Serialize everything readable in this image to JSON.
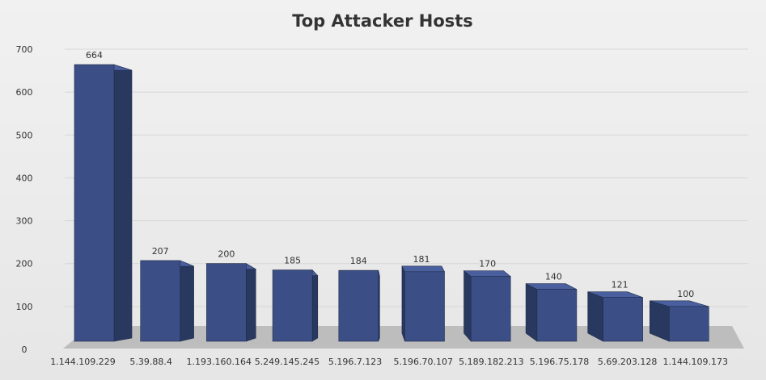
{
  "chart_data": {
    "type": "bar",
    "title": "Top Attacker Hosts",
    "xlabel": "",
    "ylabel": "",
    "categories": [
      "1.144.109.229",
      "5.39.88.4",
      "1.193.160.164",
      "5.249.145.245",
      "5.196.7.123",
      "5.196.70.107",
      "5.189.182.213",
      "5.196.75.178",
      "5.69.203.128",
      "1.144.109.173"
    ],
    "values": [
      664,
      207,
      200,
      185,
      184,
      181,
      170,
      140,
      121,
      100
    ],
    "ylim": [
      0,
      700
    ],
    "yticks": [
      0,
      100,
      200,
      300,
      400,
      500,
      600,
      700
    ],
    "grid": true,
    "legend": "none",
    "style": "3d-column",
    "colors": {
      "bar_front": "#3b4f86",
      "bar_side": "#29385f",
      "bar_top": "#4a609e",
      "floor": "#bdbdbd",
      "text": "#333333"
    }
  }
}
